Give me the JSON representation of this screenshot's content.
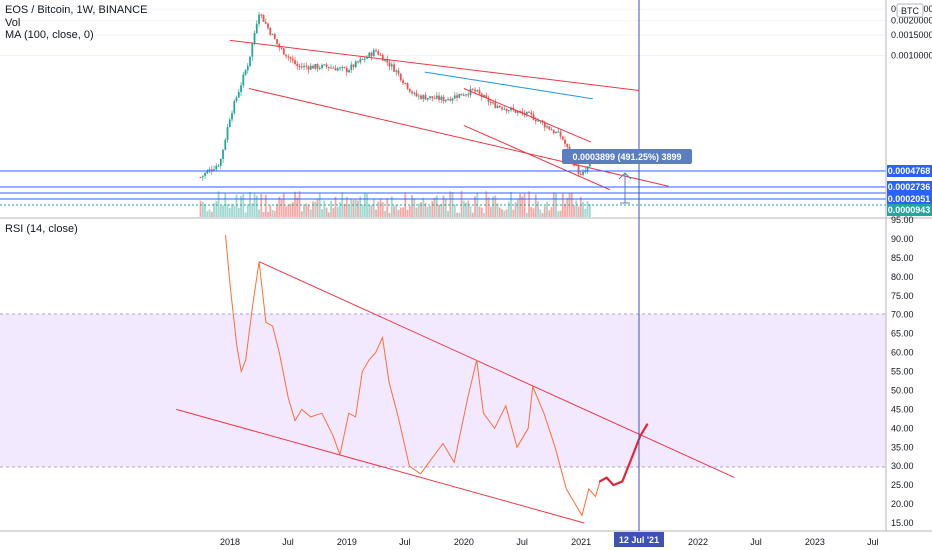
{
  "chart_data": [
    {
      "type": "candlestick",
      "title": "EOS / Bitcoin, 1W, BINANCE",
      "indicators": [
        "Vol",
        "MA (100, close, 0)"
      ],
      "badge": "BTC",
      "yscale": "log",
      "ylim": [
        4e-05,
        0.003
      ],
      "y_ticks": [
        "0.0010000",
        "0.0015000",
        "0.0020000",
        "0.0025000"
      ],
      "price_labels": [
        {
          "text": "0.0004768",
          "color": "#2962ff"
        },
        {
          "text": "0.0002736",
          "color": "#2962ff"
        },
        {
          "text": "0.0002051",
          "color": "#2962ff"
        },
        {
          "text": "0.0000943",
          "color": "#26a69a"
        }
      ],
      "measure": {
        "text": "0.0003899 (491.25%) 3899",
        "color": "#5b7fbe"
      },
      "close_approx": [
        {
          "date": "2017-10",
          "close": 9e-05
        },
        {
          "date": "2017-12",
          "close": 0.00012
        },
        {
          "date": "2018-01",
          "close": 0.0003
        },
        {
          "date": "2018-03",
          "close": 0.0009
        },
        {
          "date": "2018-04",
          "close": 0.0024
        },
        {
          "date": "2018-05",
          "close": 0.0017
        },
        {
          "date": "2018-06",
          "close": 0.0012
        },
        {
          "date": "2018-08",
          "close": 0.0008
        },
        {
          "date": "2018-11",
          "close": 0.0008
        },
        {
          "date": "2019-01",
          "close": 0.00075
        },
        {
          "date": "2019-04",
          "close": 0.0011
        },
        {
          "date": "2019-06",
          "close": 0.00075
        },
        {
          "date": "2019-08",
          "close": 0.00045
        },
        {
          "date": "2019-11",
          "close": 0.00042
        },
        {
          "date": "2020-02",
          "close": 0.0005
        },
        {
          "date": "2020-04",
          "close": 0.00038
        },
        {
          "date": "2020-08",
          "close": 0.0003
        },
        {
          "date": "2020-11",
          "close": 0.0002
        },
        {
          "date": "2021-01",
          "close": 9e-05
        },
        {
          "date": "2021-02",
          "close": 0.00012
        }
      ]
    },
    {
      "type": "line",
      "title": "RSI (14, close)",
      "ylim": [
        14,
        95
      ],
      "y_ticks": [
        "15.00",
        "20.00",
        "25.00",
        "30.00",
        "35.00",
        "40.00",
        "45.00",
        "50.00",
        "55.00",
        "60.00",
        "65.00",
        "70.00",
        "75.00",
        "80.00",
        "85.00",
        "90.00",
        "95.00"
      ],
      "overbought": 70,
      "oversold": 30,
      "band_color": "#e9d7fd",
      "line_color": "#ff6d3a",
      "series": [
        {
          "values": [
            [
              "2017-12-18",
              91
            ],
            [
              "2018-01-01",
              78
            ],
            [
              "2018-01-22",
              62
            ],
            [
              "2018-02-05",
              55
            ],
            [
              "2018-02-19",
              58
            ],
            [
              "2018-03-12",
              72
            ],
            [
              "2018-04-02",
              84
            ],
            [
              "2018-04-23",
              68
            ],
            [
              "2018-05-14",
              67
            ],
            [
              "2018-06-04",
              60
            ],
            [
              "2018-07-02",
              48
            ],
            [
              "2018-07-23",
              42
            ],
            [
              "2018-08-13",
              45
            ],
            [
              "2018-09-10",
              43
            ],
            [
              "2018-10-15",
              44
            ],
            [
              "2018-11-19",
              38
            ],
            [
              "2018-12-10",
              33
            ],
            [
              "2019-01-07",
              44
            ],
            [
              "2019-01-28",
              43
            ],
            [
              "2019-02-18",
              55
            ],
            [
              "2019-03-11",
              58
            ],
            [
              "2019-04-01",
              60
            ],
            [
              "2019-04-22",
              64
            ],
            [
              "2019-05-13",
              52
            ],
            [
              "2019-06-10",
              43
            ],
            [
              "2019-07-15",
              30
            ],
            [
              "2019-08-19",
              28
            ],
            [
              "2019-09-23",
              32
            ],
            [
              "2019-10-28",
              36
            ],
            [
              "2019-12-02",
              31
            ],
            [
              "2020-01-13",
              48
            ],
            [
              "2020-02-10",
              58
            ],
            [
              "2020-03-02",
              44
            ],
            [
              "2020-04-06",
              40
            ],
            [
              "2020-05-11",
              46
            ],
            [
              "2020-06-15",
              35
            ],
            [
              "2020-07-20",
              40
            ],
            [
              "2020-08-03",
              51
            ],
            [
              "2020-09-07",
              44
            ],
            [
              "2020-10-12",
              35
            ],
            [
              "2020-11-16",
              24
            ],
            [
              "2020-12-14",
              20
            ],
            [
              "2021-01-04",
              17
            ],
            [
              "2021-01-25",
              24
            ],
            [
              "2021-02-15",
              22
            ],
            [
              "2021-03-01",
              26
            ]
          ]
        },
        {
          "name": "projection",
          "values": [
            [
              "2021-03-01",
              26
            ],
            [
              "2021-03-22",
              27
            ],
            [
              "2021-04-12",
              25
            ],
            [
              "2021-05-10",
              26
            ],
            [
              "2021-06-07",
              32
            ],
            [
              "2021-07-05",
              38
            ],
            [
              "2021-07-26",
              41
            ]
          ]
        }
      ],
      "trendlines": [
        {
          "from": [
            "2018-04-02",
            84
          ],
          "to": [
            "2022-04-25",
            27
          ]
        },
        {
          "from": [
            "2017-07-17",
            45
          ],
          "to": [
            "2021-01-11",
            15
          ]
        }
      ]
    }
  ],
  "x_axis": {
    "ticks": [
      "2018",
      "Jul",
      "2019",
      "Jul",
      "2020",
      "Jul",
      "2021",
      "2022",
      "Jul",
      "2023",
      "Jul"
    ],
    "cursor_label": "12 Jul '21"
  }
}
